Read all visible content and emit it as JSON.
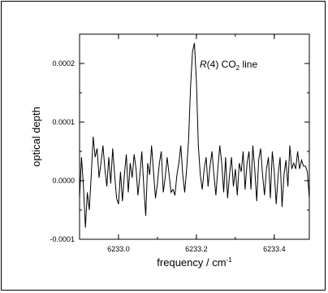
{
  "chart_data": {
    "type": "line",
    "xlabel": {
      "text": "frequency / cm",
      "superscript": "-1"
    },
    "ylabel": "optical depth",
    "xlim": [
      6232.9,
      6233.49
    ],
    "ylim": [
      -0.0001,
      0.00025
    ],
    "x_ticks": [
      {
        "value": 6233.0,
        "label": "6233.0"
      },
      {
        "value": 6233.2,
        "label": "6233.2"
      },
      {
        "value": 6233.4,
        "label": "6233.4"
      }
    ],
    "y_ticks": [
      {
        "value": -0.0001,
        "label": "-0.0001"
      },
      {
        "value": 0.0,
        "label": "0.0000"
      },
      {
        "value": 0.0001,
        "label": "0.0001"
      },
      {
        "value": 0.0002,
        "label": "0.0002"
      }
    ],
    "annotation": {
      "italic": "R",
      "mid": "(4) CO",
      "subscript": "2",
      "tail": " line"
    },
    "series": [
      {
        "color": "#000000",
        "x": [
          6232.9,
          6232.905,
          6232.91,
          6232.915,
          6232.92,
          6232.925,
          6232.93,
          6232.935,
          6232.94,
          6232.945,
          6232.95,
          6232.955,
          6232.96,
          6232.965,
          6232.97,
          6232.975,
          6232.98,
          6232.985,
          6232.99,
          6232.995,
          6233.0,
          6233.005,
          6233.01,
          6233.015,
          6233.02,
          6233.025,
          6233.03,
          6233.035,
          6233.04,
          6233.045,
          6233.05,
          6233.055,
          6233.06,
          6233.065,
          6233.07,
          6233.075,
          6233.08,
          6233.085,
          6233.09,
          6233.095,
          6233.1,
          6233.105,
          6233.11,
          6233.115,
          6233.12,
          6233.125,
          6233.13,
          6233.135,
          6233.14,
          6233.145,
          6233.15,
          6233.155,
          6233.16,
          6233.165,
          6233.17,
          6233.175,
          6233.18,
          6233.185,
          6233.19,
          6233.195,
          6233.2,
          6233.205,
          6233.21,
          6233.215,
          6233.22,
          6233.225,
          6233.23,
          6233.235,
          6233.24,
          6233.245,
          6233.25,
          6233.255,
          6233.26,
          6233.265,
          6233.27,
          6233.275,
          6233.28,
          6233.285,
          6233.29,
          6233.295,
          6233.3,
          6233.305,
          6233.31,
          6233.315,
          6233.32,
          6233.325,
          6233.33,
          6233.335,
          6233.34,
          6233.345,
          6233.35,
          6233.355,
          6233.36,
          6233.365,
          6233.37,
          6233.375,
          6233.38,
          6233.385,
          6233.39,
          6233.395,
          6233.4,
          6233.405,
          6233.41,
          6233.415,
          6233.42,
          6233.425,
          6233.43,
          6233.435,
          6233.44,
          6233.445,
          6233.45,
          6233.455,
          6233.46,
          6233.465,
          6233.47,
          6233.475,
          6233.48,
          6233.485,
          6233.49
        ],
        "y": [
          -3e-05,
          4e-05,
          -1e-05,
          -8e-05,
          -2e-05,
          -5e-05,
          1e-05,
          7.5e-05,
          4e-05,
          5.5e-05,
          5e-06,
          3e-05,
          6e-05,
          2e-05,
          -1e-05,
          4e-05,
          -5e-06,
          5.5e-05,
          1e-05,
          -3e-05,
          -4e-05,
          1.5e-05,
          -3.5e-05,
          1e-05,
          4.5e-05,
          -2e-05,
          3e-05,
          5e-06,
          4.5e-05,
          2e-05,
          -2.5e-05,
          1e-05,
          5e-05,
          -1e-05,
          -6e-05,
          3e-05,
          1e-05,
          6e-05,
          1.5e-05,
          -3e-05,
          -5e-06,
          3e-05,
          5e-05,
          -2e-05,
          5e-06,
          4e-05,
          1e-05,
          -2e-05,
          -1.5e-05,
          -2.5e-05,
          1e-05,
          3e-05,
          6e-05,
          1e-05,
          -2e-05,
          2e-05,
          7e-05,
          0.00016,
          0.00022,
          0.000235,
          0.00017,
          6e-05,
          1e-05,
          -1.5e-05,
          2e-05,
          4e-05,
          -1e-05,
          2.5e-05,
          5e-05,
          1e-05,
          -2.5e-05,
          2e-05,
          6e-05,
          3e-05,
          -2e-05,
          4e-05,
          -3e-05,
          1e-05,
          4e-05,
          -1e-05,
          2e-05,
          -2.5e-05,
          3e-05,
          1.5e-05,
          5e-05,
          -1.5e-05,
          3e-05,
          5e-05,
          -1.5e-05,
          6e-05,
          2e-05,
          -3.5e-05,
          3.5e-05,
          5.5e-05,
          1e-05,
          -2.5e-05,
          2e-05,
          4e-05,
          -3e-05,
          5e-05,
          1.5e-05,
          -4e-05,
          1e-05,
          4e-05,
          -4.5e-05,
          1e-05,
          3.5e-05,
          -1e-05,
          6e-05,
          2e-05,
          3e-05,
          2e-05,
          5e-05,
          2e-05,
          3.5e-05,
          2.5e-05,
          2.5e-05,
          1.5e-05,
          -3e-05
        ]
      }
    ]
  }
}
